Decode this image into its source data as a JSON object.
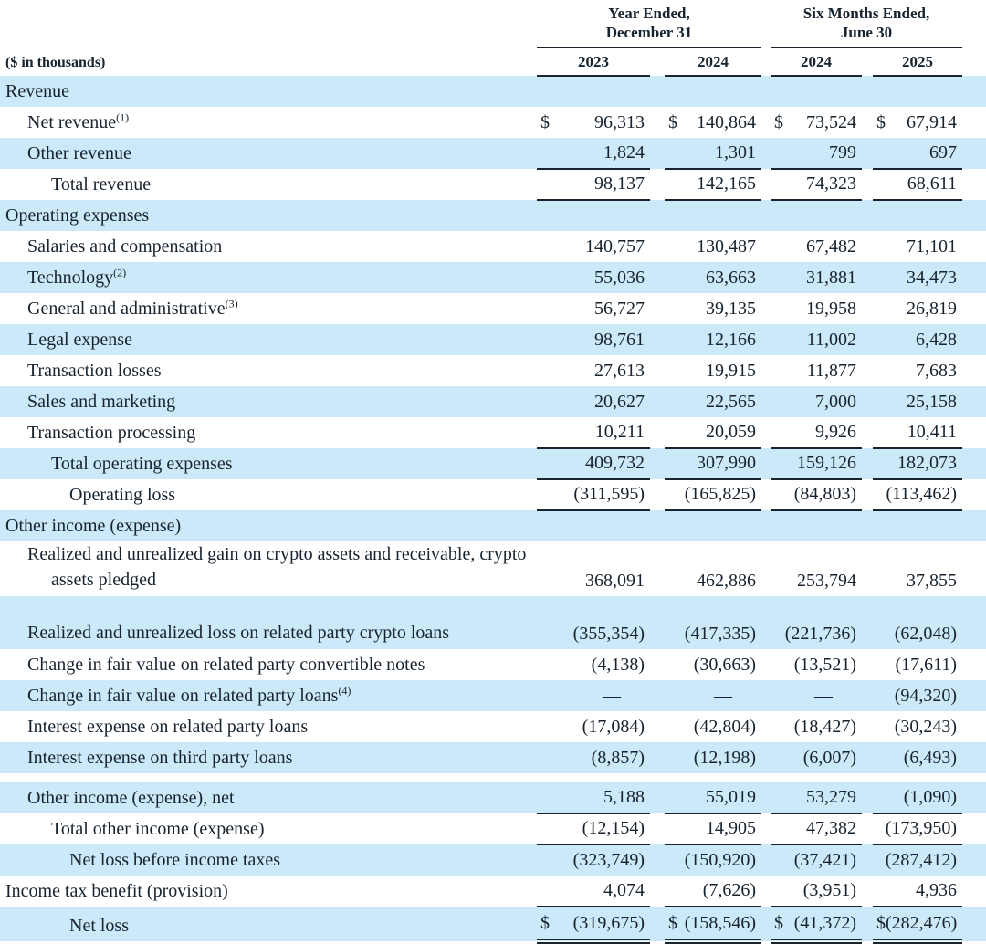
{
  "table": {
    "currency_symbol": "$",
    "nil_symbol": "—",
    "header": {
      "unit_label": "($ in thousands)",
      "groups": [
        {
          "line1": "Year Ended,",
          "line2": "December 31",
          "years": [
            "2023",
            "2024"
          ]
        },
        {
          "line1": "Six Months Ended,",
          "line2": "June 30",
          "years": [
            "2024",
            "2025"
          ]
        }
      ]
    },
    "rows": [
      {
        "label": "Revenue",
        "indent": 0,
        "shade": true,
        "type": "section"
      },
      {
        "label": "Net revenue",
        "sup": "(1)",
        "indent": 1,
        "shade": false,
        "dollar": true,
        "values": [
          "96,313",
          "140,864",
          "73,524",
          "67,914"
        ]
      },
      {
        "label": "Other revenue",
        "indent": 1,
        "shade": true,
        "values": [
          "1,824",
          "1,301",
          "799",
          "697"
        ],
        "rule": "bottom"
      },
      {
        "label": "Total revenue",
        "indent": 2,
        "shade": false,
        "values": [
          "98,137",
          "142,165",
          "74,323",
          "68,611"
        ],
        "rule": "bottom"
      },
      {
        "label": "Operating expenses",
        "indent": 0,
        "shade": true,
        "type": "section"
      },
      {
        "label": "Salaries and compensation",
        "indent": 1,
        "shade": false,
        "values": [
          "140,757",
          "130,487",
          "67,482",
          "71,101"
        ]
      },
      {
        "label": "Technology",
        "sup": "(2)",
        "indent": 1,
        "shade": true,
        "values": [
          "55,036",
          "63,663",
          "31,881",
          "34,473"
        ]
      },
      {
        "label": "General and administrative",
        "sup": "(3)",
        "indent": 1,
        "shade": false,
        "values": [
          "56,727",
          "39,135",
          "19,958",
          "26,819"
        ]
      },
      {
        "label": "Legal expense",
        "indent": 1,
        "shade": true,
        "values": [
          "98,761",
          "12,166",
          "11,002",
          "6,428"
        ]
      },
      {
        "label": "Transaction losses",
        "indent": 1,
        "shade": false,
        "values": [
          "27,613",
          "19,915",
          "11,877",
          "7,683"
        ]
      },
      {
        "label": "Sales and marketing",
        "indent": 1,
        "shade": true,
        "values": [
          "20,627",
          "22,565",
          "7,000",
          "25,158"
        ]
      },
      {
        "label": "Transaction processing",
        "indent": 1,
        "shade": false,
        "values": [
          "10,211",
          "20,059",
          "9,926",
          "10,411"
        ],
        "rule": "bottom"
      },
      {
        "label": "Total operating expenses",
        "indent": 2,
        "shade": true,
        "values": [
          "409,732",
          "307,990",
          "159,126",
          "182,073"
        ],
        "rule": "bottom"
      },
      {
        "label": "Operating loss",
        "indent": 3,
        "shade": false,
        "values": [
          "(311,595)",
          "(165,825)",
          "(84,803)",
          "(113,462)"
        ],
        "rule": "bottom"
      },
      {
        "label": "Other income (expense)",
        "indent": 0,
        "shade": true,
        "type": "section"
      },
      {
        "label": "Realized and unrealized gain on crypto assets and receivable, crypto assets pledged",
        "indent": 1,
        "shade": false,
        "wrap": true,
        "values": [
          "368,091",
          "462,886",
          "253,794",
          "37,855"
        ]
      },
      {
        "label": "Realized and unrealized loss on related party crypto loans",
        "indent": 1,
        "shade": true,
        "wrap": true,
        "values": [
          "(355,354)",
          "(417,335)",
          "(221,736)",
          "(62,048)"
        ]
      },
      {
        "label": "Change in fair value on related party convertible notes",
        "indent": 1,
        "shade": false,
        "values": [
          "(4,138)",
          "(30,663)",
          "(13,521)",
          "(17,611)"
        ]
      },
      {
        "label": "Change in fair value on related party loans",
        "sup": "(4)",
        "indent": 1,
        "shade": true,
        "values": [
          "—",
          "—",
          "—",
          "(94,320)"
        ]
      },
      {
        "label": "Interest expense on related party loans",
        "indent": 1,
        "shade": false,
        "values": [
          "(17,084)",
          "(42,804)",
          "(18,427)",
          "(30,243)"
        ]
      },
      {
        "label": "Interest expense on third party loans",
        "indent": 1,
        "shade": true,
        "values": [
          "(8,857)",
          "(12,198)",
          "(6,007)",
          "(6,493)"
        ]
      },
      {
        "type": "spacer"
      },
      {
        "label": "Other income (expense), net",
        "indent": 1,
        "shade": true,
        "values": [
          "5,188",
          "55,019",
          "53,279",
          "(1,090)"
        ],
        "rule": "bottom"
      },
      {
        "label": "Total other income (expense)",
        "indent": 2,
        "shade": false,
        "values": [
          "(12,154)",
          "14,905",
          "47,382",
          "(173,950)"
        ],
        "rule": "bottom"
      },
      {
        "label": "Net loss before income taxes",
        "indent": 3,
        "shade": true,
        "values": [
          "(323,749)",
          "(150,920)",
          "(37,421)",
          "(287,412)"
        ]
      },
      {
        "label": "Income tax benefit (provision)",
        "indent": 0,
        "shade": false,
        "values": [
          "4,074",
          "(7,626)",
          "(3,951)",
          "4,936"
        ],
        "rule": "bottom"
      },
      {
        "label": "Net loss",
        "indent": 3,
        "shade": true,
        "dollar": true,
        "values": [
          "(319,675)",
          "(158,546)",
          "(41,372)",
          "(282,476)"
        ],
        "rule": "double"
      }
    ]
  }
}
